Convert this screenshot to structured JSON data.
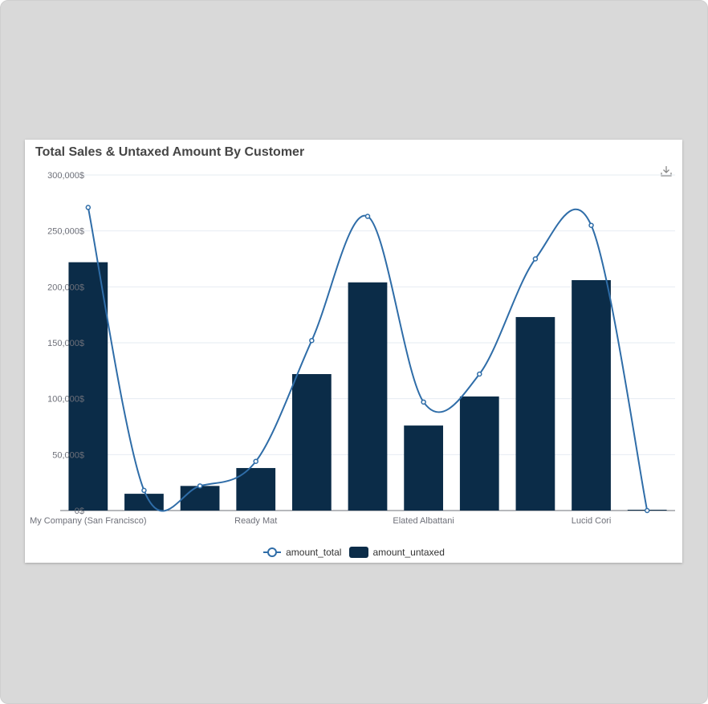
{
  "colors": {
    "bar": "#0b2c48",
    "line": "#2f6da8",
    "grid": "#e6ebf2",
    "axis": "#6e7079"
  },
  "chart_data": {
    "type": "bar",
    "title": "Total Sales & Untaxed Amount By Customer",
    "categories": [
      "My Company (San Francisco)",
      "",
      "",
      "Ready Mat",
      "",
      "",
      "Elated Albattani",
      "",
      "",
      "Lucid Cori",
      ""
    ],
    "series": [
      {
        "name": "amount_total",
        "type": "line",
        "smooth": true,
        "values": [
          271000,
          18000,
          22000,
          44000,
          152000,
          263000,
          97000,
          122000,
          225000,
          255000,
          0
        ]
      },
      {
        "name": "amount_untaxed",
        "type": "bar",
        "values": [
          222000,
          15000,
          22000,
          38000,
          122000,
          204000,
          76000,
          102000,
          173000,
          206000,
          0
        ]
      }
    ],
    "yticks": [
      "0$",
      "50,000$",
      "100,000$",
      "150,000$",
      "200,000$",
      "250,000$",
      "300,000$"
    ],
    "ylim": [
      0,
      300000
    ],
    "grid": true,
    "legend": "bottom-center"
  }
}
